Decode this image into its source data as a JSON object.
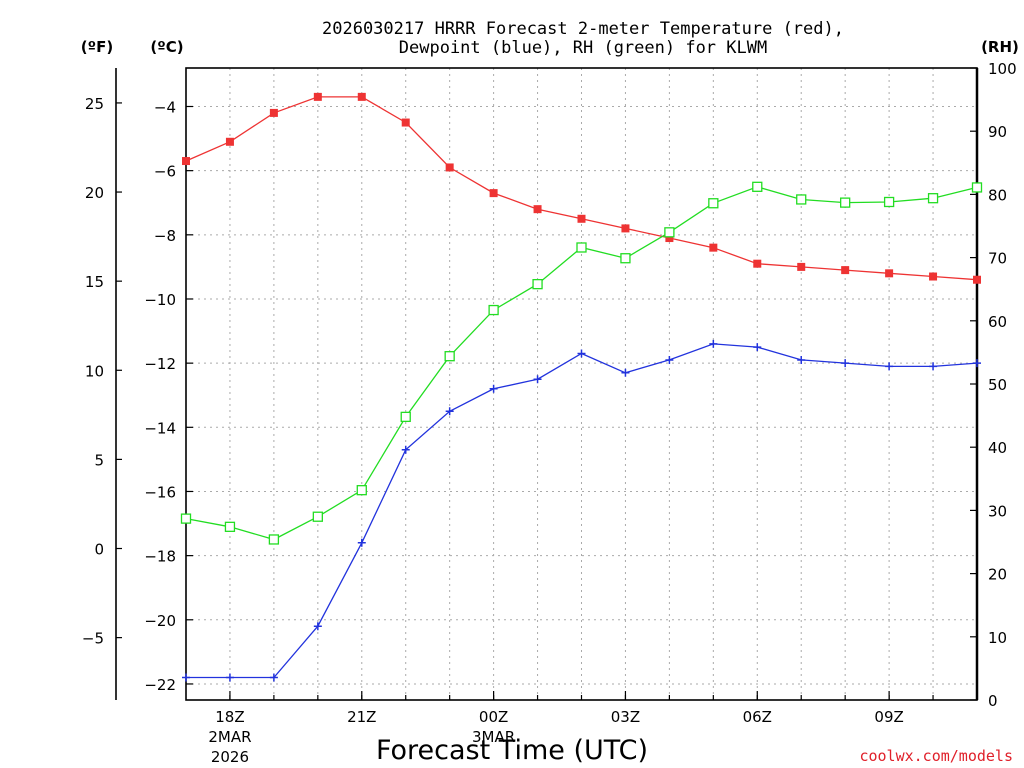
{
  "page": {
    "title_line1": "2026030217 HRRR Forecast 2-meter Temperature (red),",
    "title_line2": "Dewpoint (blue), RH (green) for KLWM",
    "unit_f": "(ºF)",
    "unit_c": "(ºC)",
    "unit_rh": "(RH)",
    "credit": "coolwx.com/models"
  },
  "chart_data": {
    "type": "line",
    "title": "2026030217 HRRR Forecast 2-meter Temperature (red), Dewpoint (blue), RH (green) for KLWM",
    "xlabel": "Forecast Time (UTC)",
    "x_hours": [
      17,
      18,
      19,
      20,
      21,
      22,
      23,
      24,
      25,
      26,
      27,
      28,
      29,
      30,
      31,
      32,
      33,
      34,
      35
    ],
    "x_range": [
      17,
      35
    ],
    "x_ticks": [
      {
        "hour": 18,
        "label": "18Z",
        "sub1": "2MAR",
        "sub2": "2026"
      },
      {
        "hour": 21,
        "label": "21Z",
        "sub1": "",
        "sub2": ""
      },
      {
        "hour": 24,
        "label": "00Z",
        "sub1": "3MAR",
        "sub2": ""
      },
      {
        "hour": 27,
        "label": "03Z",
        "sub1": "",
        "sub2": ""
      },
      {
        "hour": 30,
        "label": "06Z",
        "sub1": "",
        "sub2": ""
      },
      {
        "hour": 33,
        "label": "09Z",
        "sub1": "",
        "sub2": ""
      }
    ],
    "y_left_c": {
      "range": [
        -22.5,
        -2.8
      ],
      "ticks": [
        -4,
        -6,
        -8,
        -10,
        -12,
        -14,
        -16,
        -18,
        -20,
        -22
      ],
      "labels": [
        "−4",
        "−6",
        "−8",
        "−10",
        "−12",
        "−14",
        "−16",
        "−18",
        "−20",
        "−22"
      ]
    },
    "y_left_f": {
      "ticks": [
        25,
        20,
        15,
        10,
        5,
        0,
        -5
      ],
      "labels": [
        "25",
        "20",
        "15",
        "10",
        "5",
        "0",
        "−5"
      ]
    },
    "y_right_rh": {
      "range": [
        0,
        100
      ],
      "ticks": [
        0,
        10,
        20,
        30,
        40,
        50,
        60,
        70,
        80,
        90,
        100
      ],
      "labels": [
        "0",
        "10",
        "20",
        "30",
        "40",
        "50",
        "60",
        "70",
        "80",
        "90",
        "100"
      ]
    },
    "series": [
      {
        "name": "Temperature",
        "color": "#ee3333",
        "axis": "c",
        "marker": "filled-square",
        "values": [
          -5.7,
          -5.1,
          -4.2,
          -3.7,
          -3.7,
          -4.5,
          -5.9,
          -6.7,
          -7.2,
          -7.5,
          -7.8,
          -8.1,
          -8.4,
          -8.9,
          -9.0,
          -9.1,
          -9.2,
          -9.3,
          -9.4
        ]
      },
      {
        "name": "Dewpoint",
        "color": "#2233dd",
        "axis": "c",
        "marker": "plus",
        "values": [
          -21.8,
          -21.8,
          -21.8,
          -20.2,
          -17.6,
          -14.7,
          -13.5,
          -12.8,
          -12.5,
          -11.7,
          -12.3,
          -11.9,
          -11.4,
          -11.5,
          -11.9,
          -12.0,
          -12.1,
          -12.1,
          -12.0
        ]
      },
      {
        "name": "RH",
        "color": "#22dd22",
        "axis": "rh",
        "marker": "open-square",
        "values": [
          28.7,
          27.4,
          25.4,
          29.0,
          33.2,
          44.8,
          54.4,
          61.7,
          65.8,
          71.6,
          69.9,
          74.0,
          78.6,
          81.2,
          79.2,
          78.7,
          78.8,
          79.4,
          81.1
        ]
      }
    ]
  }
}
